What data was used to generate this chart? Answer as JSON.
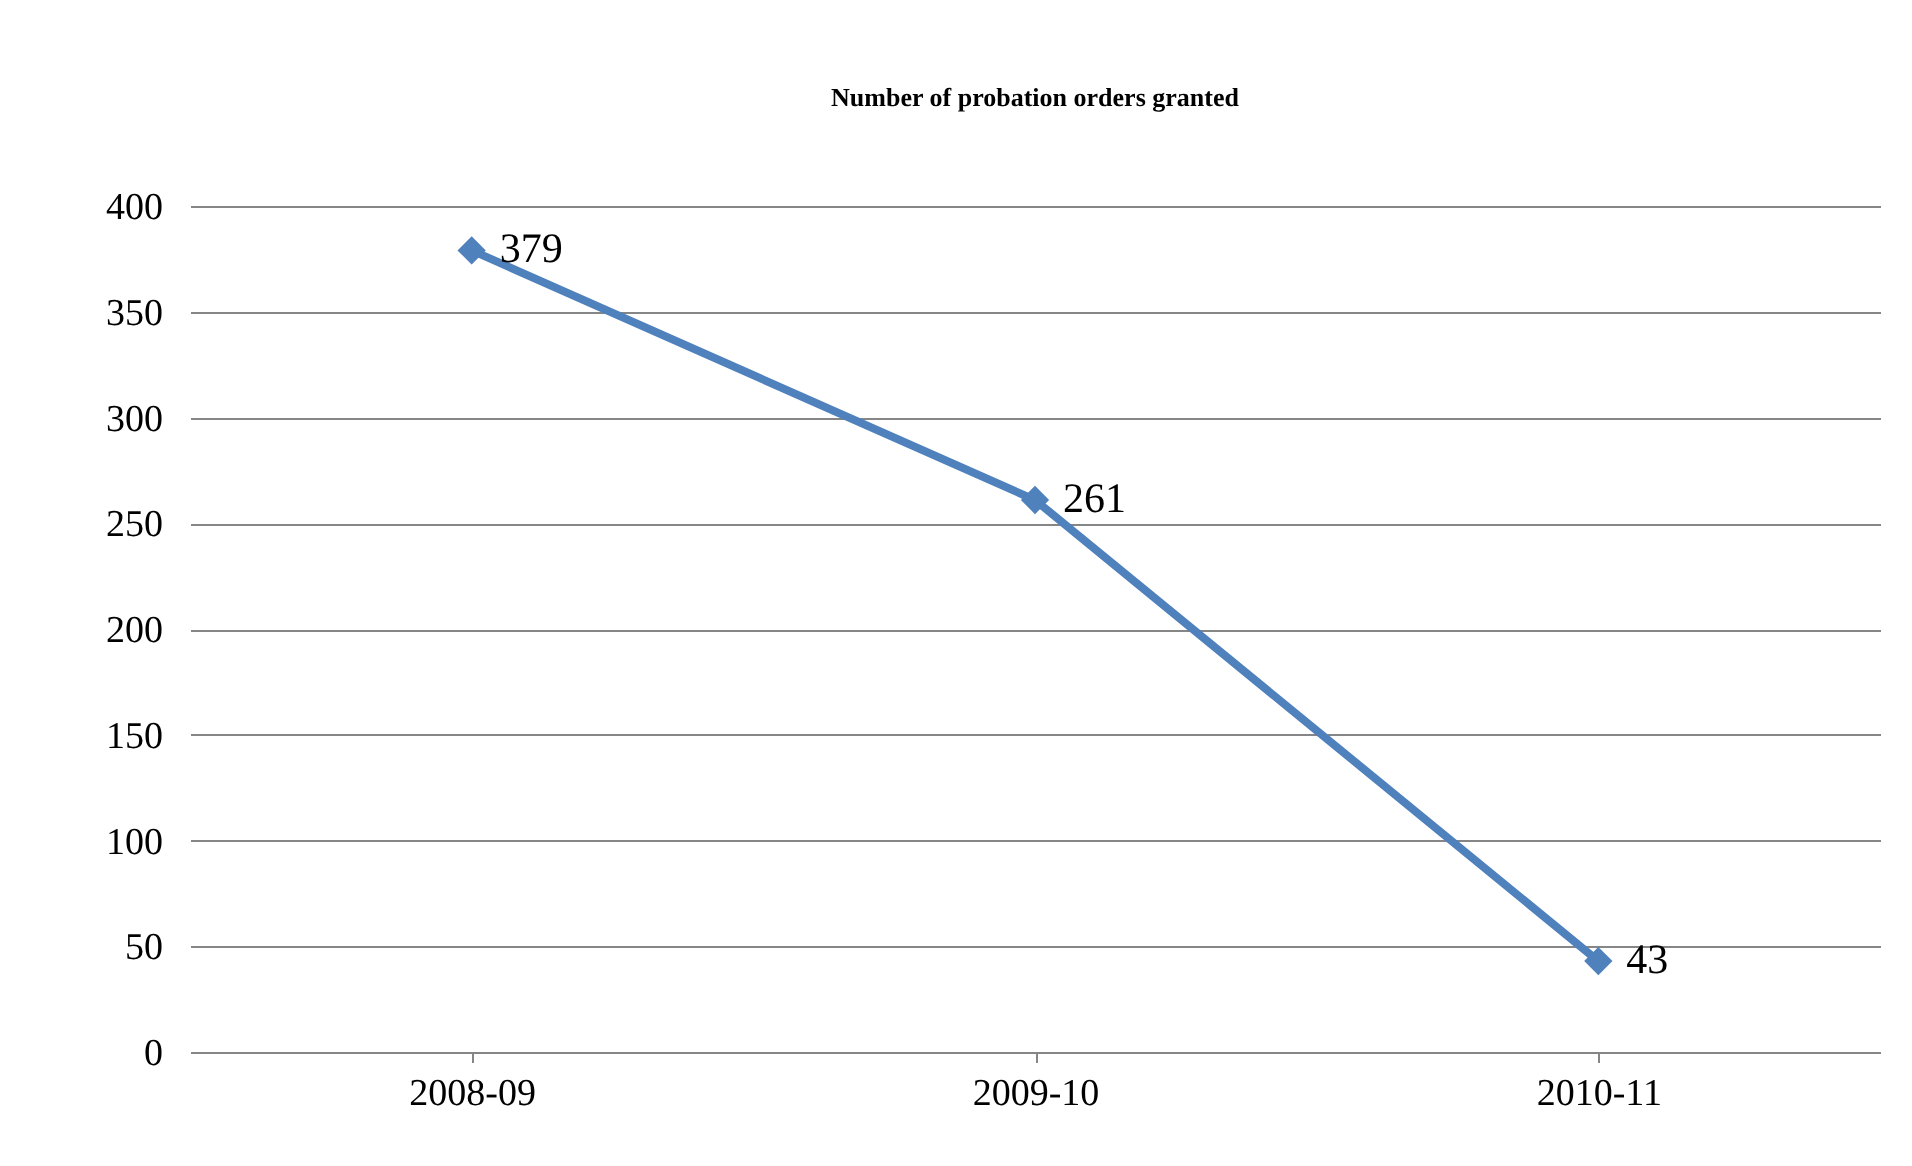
{
  "chart_data": {
    "type": "line",
    "title": "Number of probation orders granted",
    "categories": [
      "2008-09",
      "2009-10",
      "2010-11"
    ],
    "series": [
      {
        "color": "#4f81bd",
        "values": [
          379,
          261,
          43
        ]
      }
    ],
    "ylim": [
      0,
      400
    ],
    "yticks": [
      0,
      50,
      100,
      150,
      200,
      250,
      300,
      350,
      400
    ],
    "grid": "y",
    "marker": "diamond",
    "data_labels": true,
    "legend": false
  }
}
